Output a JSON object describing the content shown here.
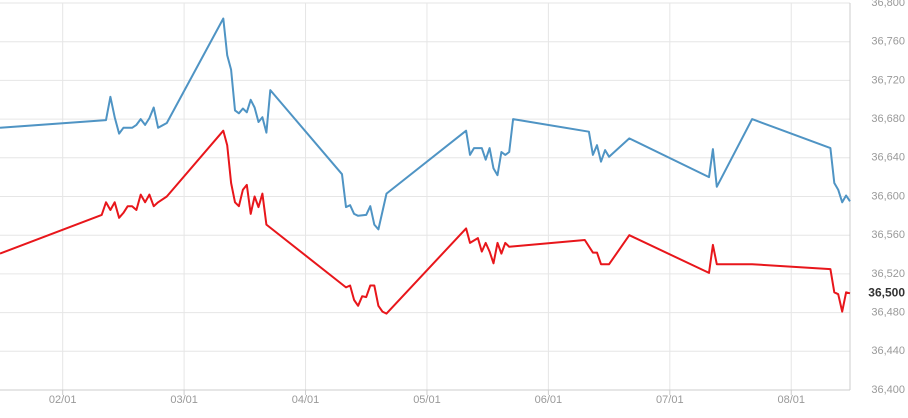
{
  "chart_data": {
    "type": "line",
    "xlim": [
      "01/16",
      "08/16"
    ],
    "xticks": [
      "02/01",
      "03/01",
      "04/01",
      "05/01",
      "06/01",
      "07/01",
      "08/01"
    ],
    "ylim": [
      36400,
      36800
    ],
    "yticks": [
      {
        "value": 36400,
        "label": "36,400"
      },
      {
        "value": 36440,
        "label": "36,440"
      },
      {
        "value": 36480,
        "label": "36,480"
      },
      {
        "value": 36520,
        "label": "36,520"
      },
      {
        "value": 36560,
        "label": "36,560"
      },
      {
        "value": 36600,
        "label": "36,600"
      },
      {
        "value": 36640,
        "label": "36,640"
      },
      {
        "value": 36680,
        "label": "36,680"
      },
      {
        "value": 36720,
        "label": "36,720"
      },
      {
        "value": 36760,
        "label": "36,760"
      },
      {
        "value": 36800,
        "label": "36,800"
      }
    ],
    "grid": true,
    "series": [
      {
        "color": "#4f94c4",
        "x": [
          "01/16",
          "02/11",
          "02/12",
          "02/13",
          "02/14",
          "02/15",
          "02/17",
          "02/18",
          "02/19",
          "02/20",
          "02/21",
          "02/22",
          "02/23",
          "02/25",
          "03/11",
          "03/12",
          "03/13",
          "03/14",
          "03/15",
          "03/16",
          "03/17",
          "03/18",
          "03/19",
          "03/20",
          "03/21",
          "03/22",
          "03/23",
          "04/10",
          "04/11",
          "04/12",
          "04/13",
          "04/14",
          "04/16",
          "04/17",
          "04/18",
          "04/19",
          "04/21",
          "05/11",
          "05/12",
          "05/13",
          "05/15",
          "05/16",
          "05/17",
          "05/18",
          "05/19",
          "05/20",
          "05/21",
          "05/22",
          "05/23",
          "06/11",
          "06/12",
          "06/13",
          "06/14",
          "06/15",
          "06/16",
          "06/21",
          "07/11",
          "07/12",
          "07/13",
          "07/22",
          "08/11",
          "08/12",
          "08/13",
          "08/14",
          "08/15",
          "08/16"
        ],
        "values": [
          36671,
          36679,
          36703,
          36682,
          36665,
          36671,
          36671,
          36674,
          36680,
          36674,
          36681,
          36692,
          36671,
          36676,
          36784,
          36746,
          36731,
          36689,
          36686,
          36691,
          36687,
          36700,
          36692,
          36677,
          36682,
          36666,
          36710,
          36623,
          36589,
          36591,
          36582,
          36580,
          36581,
          36590,
          36571,
          36566,
          36603,
          36668,
          36643,
          36650,
          36650,
          36638,
          36650,
          36629,
          36622,
          36646,
          36643,
          36646,
          36680,
          36667,
          36643,
          36653,
          36636,
          36648,
          36641,
          36660,
          36620,
          36649,
          36610,
          36680,
          36650,
          36614,
          36607,
          36594,
          36601,
          36595
        ]
      },
      {
        "color": "#e8161b",
        "x": [
          "01/16",
          "02/10",
          "02/11",
          "02/12",
          "02/13",
          "02/14",
          "02/15",
          "02/16",
          "02/17",
          "02/18",
          "02/19",
          "02/20",
          "02/21",
          "02/22",
          "02/23",
          "02/25",
          "03/11",
          "03/12",
          "03/13",
          "03/14",
          "03/15",
          "03/16",
          "03/17",
          "03/18",
          "03/19",
          "03/20",
          "03/21",
          "03/22",
          "04/11",
          "04/12",
          "04/13",
          "04/14",
          "04/15",
          "04/16",
          "04/17",
          "04/18",
          "04/19",
          "04/20",
          "04/21",
          "05/11",
          "05/12",
          "05/14",
          "05/15",
          "05/16",
          "05/17",
          "05/18",
          "05/19",
          "05/20",
          "05/21",
          "05/22",
          "06/10",
          "06/12",
          "06/13",
          "06/14",
          "06/16",
          "06/21",
          "07/11",
          "07/12",
          "07/13",
          "07/22",
          "08/11",
          "08/12",
          "08/13",
          "08/14",
          "08/15",
          "08/16"
        ],
        "values": [
          36541,
          36581,
          36594,
          36586,
          36594,
          36578,
          36583,
          36590,
          36590,
          36586,
          36602,
          36594,
          36602,
          36590,
          36594,
          36600,
          36668,
          36653,
          36614,
          36594,
          36590,
          36607,
          36612,
          36582,
          36600,
          36589,
          36603,
          36571,
          36506,
          36508,
          36493,
          36487,
          36497,
          36496,
          36508,
          36508,
          36487,
          36481,
          36479,
          36567,
          36552,
          36557,
          36543,
          36552,
          36543,
          36531,
          36552,
          36541,
          36552,
          36548,
          36555,
          36542,
          36542,
          36530,
          36530,
          36560,
          36521,
          36550,
          36530,
          36530,
          36525,
          36501,
          36499,
          36481,
          36501,
          36500
        ],
        "value_labels": [
          null,
          null,
          null,
          null,
          null,
          null,
          null,
          null,
          null,
          null,
          null,
          null,
          null,
          null,
          null,
          null,
          null,
          null,
          null,
          null,
          null,
          null,
          null,
          null,
          null,
          null,
          null,
          null,
          null,
          null,
          null,
          null,
          null,
          null,
          null,
          null,
          null,
          null,
          null,
          null,
          null,
          null,
          null,
          null,
          null,
          null,
          null,
          null,
          null,
          null,
          null,
          null,
          null,
          null,
          null,
          null,
          null,
          null,
          null,
          null,
          null,
          null,
          null,
          null,
          null,
          "36,500"
        ]
      }
    ]
  }
}
